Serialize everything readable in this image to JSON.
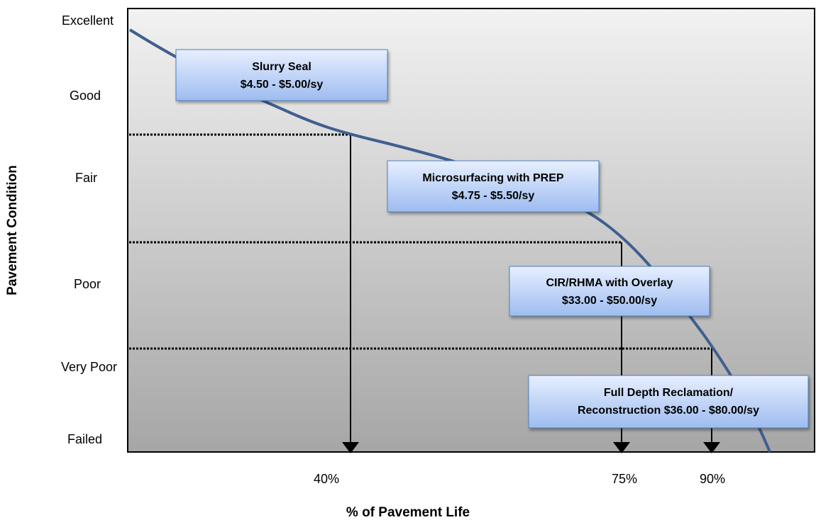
{
  "y_axis": {
    "title": "Pavement Condition",
    "labels": [
      "Excellent",
      "Good",
      "Fair",
      "Poor",
      "Very Poor",
      "Failed"
    ]
  },
  "x_axis": {
    "title": "% of Pavement Life",
    "labels": [
      "40%",
      "75%",
      "90%"
    ]
  },
  "boxes": [
    {
      "lines": [
        "Slurry Seal",
        "$4.50 - $5.00/sy"
      ]
    },
    {
      "lines": [
        "Microsurfacing with PREP",
        "$4.75 - $5.50/sy"
      ]
    },
    {
      "lines": [
        "CIR/RHMA with Overlay",
        "$33.00 - $50.00/sy"
      ]
    },
    {
      "lines": [
        "Full Depth Reclamation/",
        "Reconstruction $36.00 - $80.00/sy"
      ]
    }
  ]
}
